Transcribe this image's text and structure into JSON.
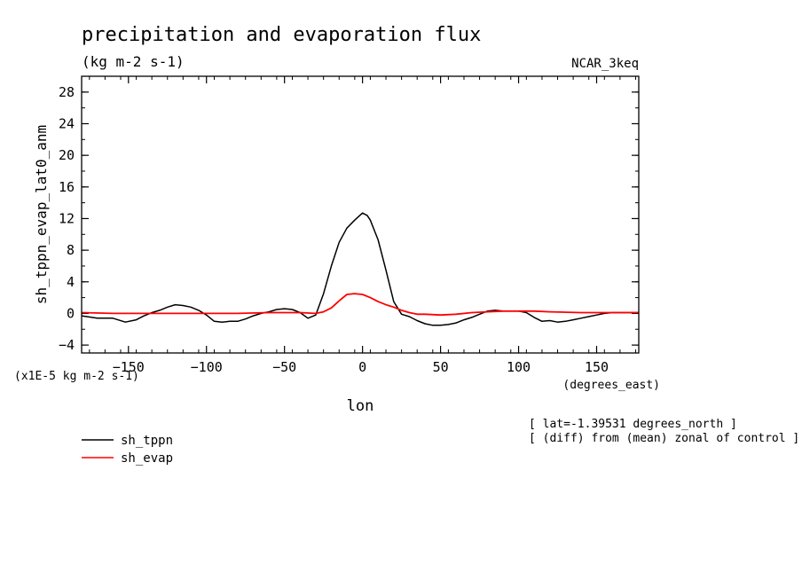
{
  "chart_data": {
    "type": "line",
    "title": "precipitation and evaporation flux",
    "subtitle": "(kg m-2 s-1)",
    "model": "NCAR_3keq",
    "ylabel": "sh_tppn_evap_lat0_anm",
    "xlabel": "lon",
    "x_units": "(degrees_east)",
    "y_scale_note": "(x1E-5 kg m-2 s-1)",
    "xlim": [
      -180,
      177
    ],
    "ylim": [
      -5,
      30
    ],
    "x_ticks": [
      -150,
      -100,
      -50,
      0,
      50,
      100,
      150
    ],
    "y_ticks": [
      -4,
      0,
      4,
      8,
      12,
      16,
      20,
      24,
      28
    ],
    "grid": false,
    "legend_position": "bottom-left",
    "annotations": [
      "[ lat=-1.39531 degrees_north ]",
      "[ (diff) from (mean) zonal of control ]"
    ],
    "series": [
      {
        "name": "sh_tppn",
        "color": "#000000",
        "x": [
          -180,
          -170,
          -160,
          -152,
          -145,
          -140,
          -135,
          -130,
          -125,
          -120,
          -115,
          -110,
          -105,
          -100,
          -95,
          -90,
          -85,
          -80,
          -75,
          -70,
          -65,
          -60,
          -55,
          -50,
          -45,
          -40,
          -35,
          -30,
          -25,
          -20,
          -15,
          -10,
          -5,
          0,
          3,
          5,
          10,
          15,
          20,
          25,
          30,
          35,
          40,
          45,
          50,
          55,
          60,
          65,
          70,
          75,
          80,
          85,
          90,
          95,
          100,
          105,
          110,
          115,
          120,
          125,
          130,
          135,
          140,
          145,
          150,
          155,
          160,
          165,
          170,
          177
        ],
        "values": [
          -0.3,
          -0.6,
          -0.6,
          -1.1,
          -0.8,
          -0.3,
          0.1,
          0.4,
          0.8,
          1.1,
          1.0,
          0.8,
          0.4,
          -0.2,
          -1.0,
          -1.1,
          -1.0,
          -1.0,
          -0.7,
          -0.3,
          0.0,
          0.2,
          0.5,
          0.6,
          0.5,
          0.1,
          -0.6,
          -0.2,
          2.5,
          6.0,
          9.0,
          10.8,
          11.8,
          12.7,
          12.4,
          11.8,
          9.3,
          5.5,
          1.5,
          -0.1,
          -0.4,
          -0.9,
          -1.3,
          -1.5,
          -1.5,
          -1.4,
          -1.2,
          -0.8,
          -0.5,
          -0.1,
          0.3,
          0.4,
          0.3,
          0.3,
          0.3,
          0.1,
          -0.5,
          -1.0,
          -0.9,
          -1.1,
          -1.0,
          -0.8,
          -0.6,
          -0.4,
          -0.2,
          0.0,
          0.1,
          0.1,
          0.1,
          0.1
        ]
      },
      {
        "name": "sh_evap",
        "color": "#ff0000",
        "x": [
          -180,
          -160,
          -140,
          -120,
          -100,
          -80,
          -60,
          -40,
          -30,
          -25,
          -20,
          -15,
          -10,
          -5,
          0,
          5,
          10,
          15,
          20,
          25,
          30,
          35,
          40,
          50,
          60,
          70,
          80,
          90,
          100,
          110,
          120,
          140,
          160,
          177
        ],
        "values": [
          0.1,
          0.0,
          0.0,
          0.0,
          0.0,
          0.0,
          0.1,
          0.1,
          0.0,
          0.2,
          0.7,
          1.6,
          2.4,
          2.5,
          2.4,
          2.0,
          1.5,
          1.1,
          0.8,
          0.4,
          0.1,
          -0.1,
          -0.1,
          -0.2,
          -0.1,
          0.1,
          0.2,
          0.3,
          0.3,
          0.3,
          0.2,
          0.1,
          0.1,
          0.1
        ]
      }
    ]
  }
}
